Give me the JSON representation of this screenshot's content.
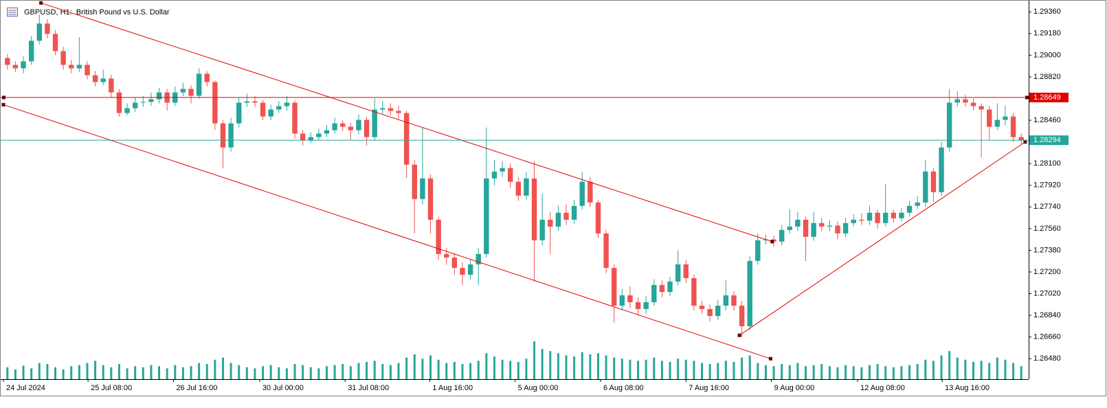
{
  "chart_data": {
    "type": "candlestick",
    "title": "GBPUSD, H1:  British Pound vs U.S. Dollar",
    "xlim": [
      0,
      128
    ],
    "xticks": [
      {
        "value": 0,
        "label": "24 Jul 2024"
      },
      {
        "value": 10.6,
        "label": "25 Jul 08:00"
      },
      {
        "value": 21.3,
        "label": "26 Jul 16:00"
      },
      {
        "value": 32.1,
        "label": "30 Jul 00:00"
      },
      {
        "value": 42.8,
        "label": "31 Jul 08:00"
      },
      {
        "value": 53.4,
        "label": "1 Aug 16:00"
      },
      {
        "value": 64.1,
        "label": "5 Aug 00:00"
      },
      {
        "value": 74.8,
        "label": "6 Aug 08:00"
      },
      {
        "value": 85.5,
        "label": "7 Aug 16:00"
      },
      {
        "value": 96.2,
        "label": "9 Aug 00:00"
      },
      {
        "value": 107,
        "label": "12 Aug 08:00"
      },
      {
        "value": 117.6,
        "label": "13 Aug 16:00"
      }
    ],
    "ylim": [
      1.2631,
      1.2943
    ],
    "yticks": [
      {
        "value": 1.2936,
        "label": "1.29360"
      },
      {
        "value": 1.2918,
        "label": "1.29180"
      },
      {
        "value": 1.29,
        "label": "1.29000"
      },
      {
        "value": 1.2882,
        "label": "1.28820"
      },
      {
        "value": 1.2846,
        "label": "1.28460"
      },
      {
        "value": 1.281,
        "label": "1.28100"
      },
      {
        "value": 1.2792,
        "label": "1.27920"
      },
      {
        "value": 1.2774,
        "label": "1.27740"
      },
      {
        "value": 1.2756,
        "label": "1.27560"
      },
      {
        "value": 1.2738,
        "label": "1.27380"
      },
      {
        "value": 1.272,
        "label": "1.27200"
      },
      {
        "value": 1.2702,
        "label": "1.27020"
      },
      {
        "value": 1.2684,
        "label": "1.26840"
      },
      {
        "value": 1.2666,
        "label": "1.26660"
      },
      {
        "value": 1.2648,
        "label": "1.26480"
      }
    ],
    "grid": false,
    "up_color": "#26a69a",
    "down_color": "#ef5350",
    "volume_color": "#26a69a",
    "open": [
      1.28977,
      1.2892,
      1.28891,
      1.28949,
      1.2912,
      1.29263,
      1.29177,
      1.29034,
      1.2892,
      1.28891,
      1.2892,
      1.28834,
      1.28777,
      1.28806,
      1.28691,
      1.2852,
      1.2856,
      1.28606,
      1.28612,
      1.28634,
      1.28691,
      1.28606,
      1.28691,
      1.2872,
      1.28663,
      1.28846,
      1.28777,
      1.28434,
      1.28234,
      1.28434,
      1.28606,
      1.28617,
      1.28606,
      1.28491,
      1.28549,
      1.28577,
      1.28606,
      1.28349,
      1.28291,
      1.2832,
      1.28349,
      1.28377,
      1.28434,
      1.28406,
      1.28377,
      1.28463,
      1.2832,
      1.28549,
      1.2856,
      1.28537,
      1.2852,
      1.28091,
      1.27806,
      1.27977,
      1.27634,
      1.27349,
      1.2732,
      1.27234,
      1.27177,
      1.27263,
      1.27349,
      1.27977,
      1.28034,
      1.28063,
      1.27949,
      1.27834,
      1.27977,
      1.27463,
      1.27634,
      1.27577,
      1.27692,
      1.27634,
      1.27749,
      1.27949,
      1.27777,
      1.2752,
      1.27234,
      1.2692,
      1.27006,
      1.26949,
      1.26892,
      1.26949,
      1.27092,
      1.27034,
      1.2712,
      1.27263,
      1.27149,
      1.2692,
      1.26892,
      1.26834,
      1.2692,
      1.27006,
      1.2692,
      1.26749,
      1.27292,
      1.27463,
      1.2747,
      1.27452,
      1.27549,
      1.27577,
      1.27634,
      1.27492,
      1.27606,
      1.27577,
      1.27585,
      1.2752,
      1.27606,
      1.27634,
      1.27626,
      1.27692,
      1.27606,
      1.27692,
      1.27646,
      1.27692,
      1.27749,
      1.27777,
      1.28034,
      1.27863,
      1.28234,
      1.28606,
      1.28634,
      1.28606,
      1.28577,
      1.28549,
      1.28406,
      1.28463,
      1.28491,
      1.2832
    ],
    "high": [
      1.2901,
      1.2895,
      1.2899,
      1.2916,
      1.2934,
      1.293,
      1.2921,
      1.2907,
      1.2896,
      1.2915,
      1.2895,
      1.2887,
      1.2888,
      1.2884,
      1.2872,
      1.286,
      1.2865,
      1.2866,
      1.2869,
      1.2873,
      1.2872,
      1.2874,
      1.2877,
      1.2875,
      1.2889,
      1.2887,
      1.2879,
      1.2846,
      1.2848,
      1.2865,
      1.2868,
      1.2866,
      1.2863,
      1.2859,
      1.2862,
      1.2866,
      1.2863,
      1.2838,
      1.2836,
      1.2839,
      1.2842,
      1.2848,
      1.2846,
      1.2844,
      1.2851,
      1.2849,
      1.2864,
      1.2862,
      1.286,
      1.2858,
      1.2854,
      1.2813,
      1.284,
      1.2801,
      1.2766,
      1.274,
      1.2736,
      1.2728,
      1.273,
      1.274,
      1.284,
      1.2813,
      1.2812,
      1.281,
      1.2799,
      1.2803,
      1.2812,
      1.2785,
      1.277,
      1.2775,
      1.2776,
      1.278,
      1.2803,
      1.2799,
      1.278,
      1.2755,
      1.2726,
      1.2706,
      1.2708,
      1.2699,
      1.27,
      1.2714,
      1.2713,
      1.2716,
      1.2738,
      1.273,
      1.2718,
      1.2696,
      1.2693,
      1.2697,
      1.2713,
      1.2704,
      1.2696,
      1.2733,
      1.2752,
      1.2751,
      1.275,
      1.2759,
      1.2772,
      1.277,
      1.2766,
      1.277,
      1.2765,
      1.2763,
      1.2762,
      1.2765,
      1.2768,
      1.2769,
      1.2775,
      1.2772,
      1.2793,
      1.2772,
      1.2773,
      1.2779,
      1.2783,
      1.2813,
      1.2806,
      1.2828,
      1.2872,
      1.287,
      1.2867,
      1.2864,
      1.286,
      1.2858,
      1.286,
      1.2858,
      1.2852,
      1.2835
    ],
    "low": [
      1.2888,
      1.2886,
      1.2885,
      1.2892,
      1.2909,
      1.2914,
      1.29,
      1.2888,
      1.2885,
      1.2886,
      1.288,
      1.2874,
      1.2875,
      1.2865,
      1.2849,
      1.285,
      1.2853,
      1.2857,
      1.2858,
      1.286,
      1.2854,
      1.2858,
      1.2866,
      1.286,
      1.2864,
      1.2874,
      1.2838,
      1.2806,
      1.282,
      1.284,
      1.2857,
      1.2857,
      1.2846,
      1.2846,
      1.2852,
      1.2854,
      1.2831,
      1.2825,
      1.2827,
      1.2829,
      1.2832,
      1.2835,
      1.2837,
      1.283,
      1.2834,
      1.2825,
      1.2829,
      1.2851,
      1.285,
      1.2847,
      1.2798,
      1.2752,
      1.2776,
      1.2752,
      1.273,
      1.2726,
      1.2718,
      1.2709,
      1.2714,
      1.2709,
      1.2732,
      1.2792,
      1.2799,
      1.279,
      1.2779,
      1.278,
      1.2712,
      1.2742,
      1.2735,
      1.2754,
      1.2759,
      1.276,
      1.2772,
      1.2774,
      1.2748,
      1.2719,
      1.2678,
      1.2688,
      1.269,
      1.2684,
      1.2685,
      1.2692,
      1.2699,
      1.27,
      1.2709,
      1.2711,
      1.2688,
      1.2685,
      1.2679,
      1.268,
      1.2688,
      1.2688,
      1.2666,
      1.2672,
      1.2726,
      1.2743,
      1.2741,
      1.2742,
      1.2752,
      1.2754,
      1.2729,
      1.2746,
      1.2754,
      1.2754,
      1.2747,
      1.2749,
      1.2758,
      1.2759,
      1.2759,
      1.2756,
      1.2758,
      1.2761,
      1.2762,
      1.2766,
      1.2772,
      1.2774,
      1.2778,
      1.2783,
      1.282,
      1.2857,
      1.2857,
      1.2854,
      1.2815,
      1.283,
      1.2838,
      1.2842,
      1.2828,
      1.2826
    ],
    "close": [
      1.2892,
      1.28891,
      1.28949,
      1.2912,
      1.29263,
      1.29177,
      1.29034,
      1.2892,
      1.28891,
      1.2892,
      1.28834,
      1.28777,
      1.28806,
      1.28691,
      1.2852,
      1.2856,
      1.28606,
      1.28612,
      1.28634,
      1.28691,
      1.28606,
      1.28691,
      1.2872,
      1.28663,
      1.28846,
      1.28777,
      1.28434,
      1.28234,
      1.28434,
      1.28606,
      1.28617,
      1.28606,
      1.28491,
      1.28549,
      1.28577,
      1.28606,
      1.28349,
      1.28291,
      1.2832,
      1.28349,
      1.28377,
      1.28434,
      1.28406,
      1.28377,
      1.28463,
      1.2832,
      1.28549,
      1.2856,
      1.28537,
      1.2852,
      1.28091,
      1.27806,
      1.27977,
      1.27634,
      1.27349,
      1.2732,
      1.27234,
      1.27177,
      1.27263,
      1.27349,
      1.27977,
      1.28034,
      1.28063,
      1.27949,
      1.27834,
      1.27977,
      1.27463,
      1.27634,
      1.27577,
      1.27692,
      1.27634,
      1.27749,
      1.27949,
      1.27777,
      1.2752,
      1.27234,
      1.2692,
      1.27006,
      1.26949,
      1.26892,
      1.26949,
      1.27092,
      1.27034,
      1.2712,
      1.27263,
      1.27149,
      1.2692,
      1.26892,
      1.26834,
      1.2692,
      1.27006,
      1.2692,
      1.26749,
      1.27292,
      1.27463,
      1.2747,
      1.27452,
      1.27549,
      1.27577,
      1.27634,
      1.27492,
      1.27606,
      1.27577,
      1.27585,
      1.2752,
      1.27606,
      1.27634,
      1.27626,
      1.27692,
      1.27606,
      1.27692,
      1.27646,
      1.27692,
      1.27749,
      1.27777,
      1.28034,
      1.27863,
      1.28234,
      1.28606,
      1.28634,
      1.28606,
      1.28577,
      1.28549,
      1.28406,
      1.28463,
      1.28491,
      1.2832,
      1.28294
    ],
    "volumes": [
      22,
      18,
      25,
      20,
      30,
      28,
      22,
      18,
      24,
      26,
      30,
      34,
      26,
      22,
      28,
      20,
      24,
      22,
      26,
      24,
      20,
      26,
      22,
      24,
      30,
      28,
      36,
      40,
      30,
      26,
      22,
      20,
      24,
      26,
      22,
      20,
      28,
      26,
      22,
      20,
      24,
      26,
      28,
      24,
      30,
      32,
      34,
      28,
      26,
      30,
      40,
      46,
      38,
      44,
      36,
      30,
      32,
      28,
      30,
      34,
      48,
      42,
      36,
      34,
      32,
      38,
      70,
      56,
      52,
      48,
      44,
      42,
      50,
      46,
      48,
      44,
      40,
      38,
      36,
      34,
      36,
      40,
      34,
      32,
      38,
      36,
      34,
      30,
      28,
      30,
      34,
      32,
      40,
      44,
      30,
      26,
      24,
      28,
      26,
      30,
      24,
      26,
      28,
      24,
      22,
      26,
      24,
      22,
      26,
      28,
      24,
      22,
      24,
      26,
      28,
      36,
      34,
      44,
      52,
      40,
      36,
      32,
      34,
      30,
      40,
      36,
      30,
      24
    ],
    "hlines": [
      {
        "value": 1.28649,
        "color": "#e00000"
      },
      {
        "value": 1.28294,
        "color": "#26a69a"
      }
    ],
    "trendlines": [
      {
        "x": [
          4.7,
          96.3
        ],
        "y": [
          1.29434,
          1.27452
        ],
        "color": "#e00000"
      },
      {
        "x": [
          0,
          96.1
        ],
        "y": [
          1.28589,
          1.2648
        ],
        "color": "#e00000"
      },
      {
        "x": [
          92.2,
          128
        ],
        "y": [
          1.26674,
          1.2828
        ],
        "color": "#e00000"
      }
    ]
  }
}
